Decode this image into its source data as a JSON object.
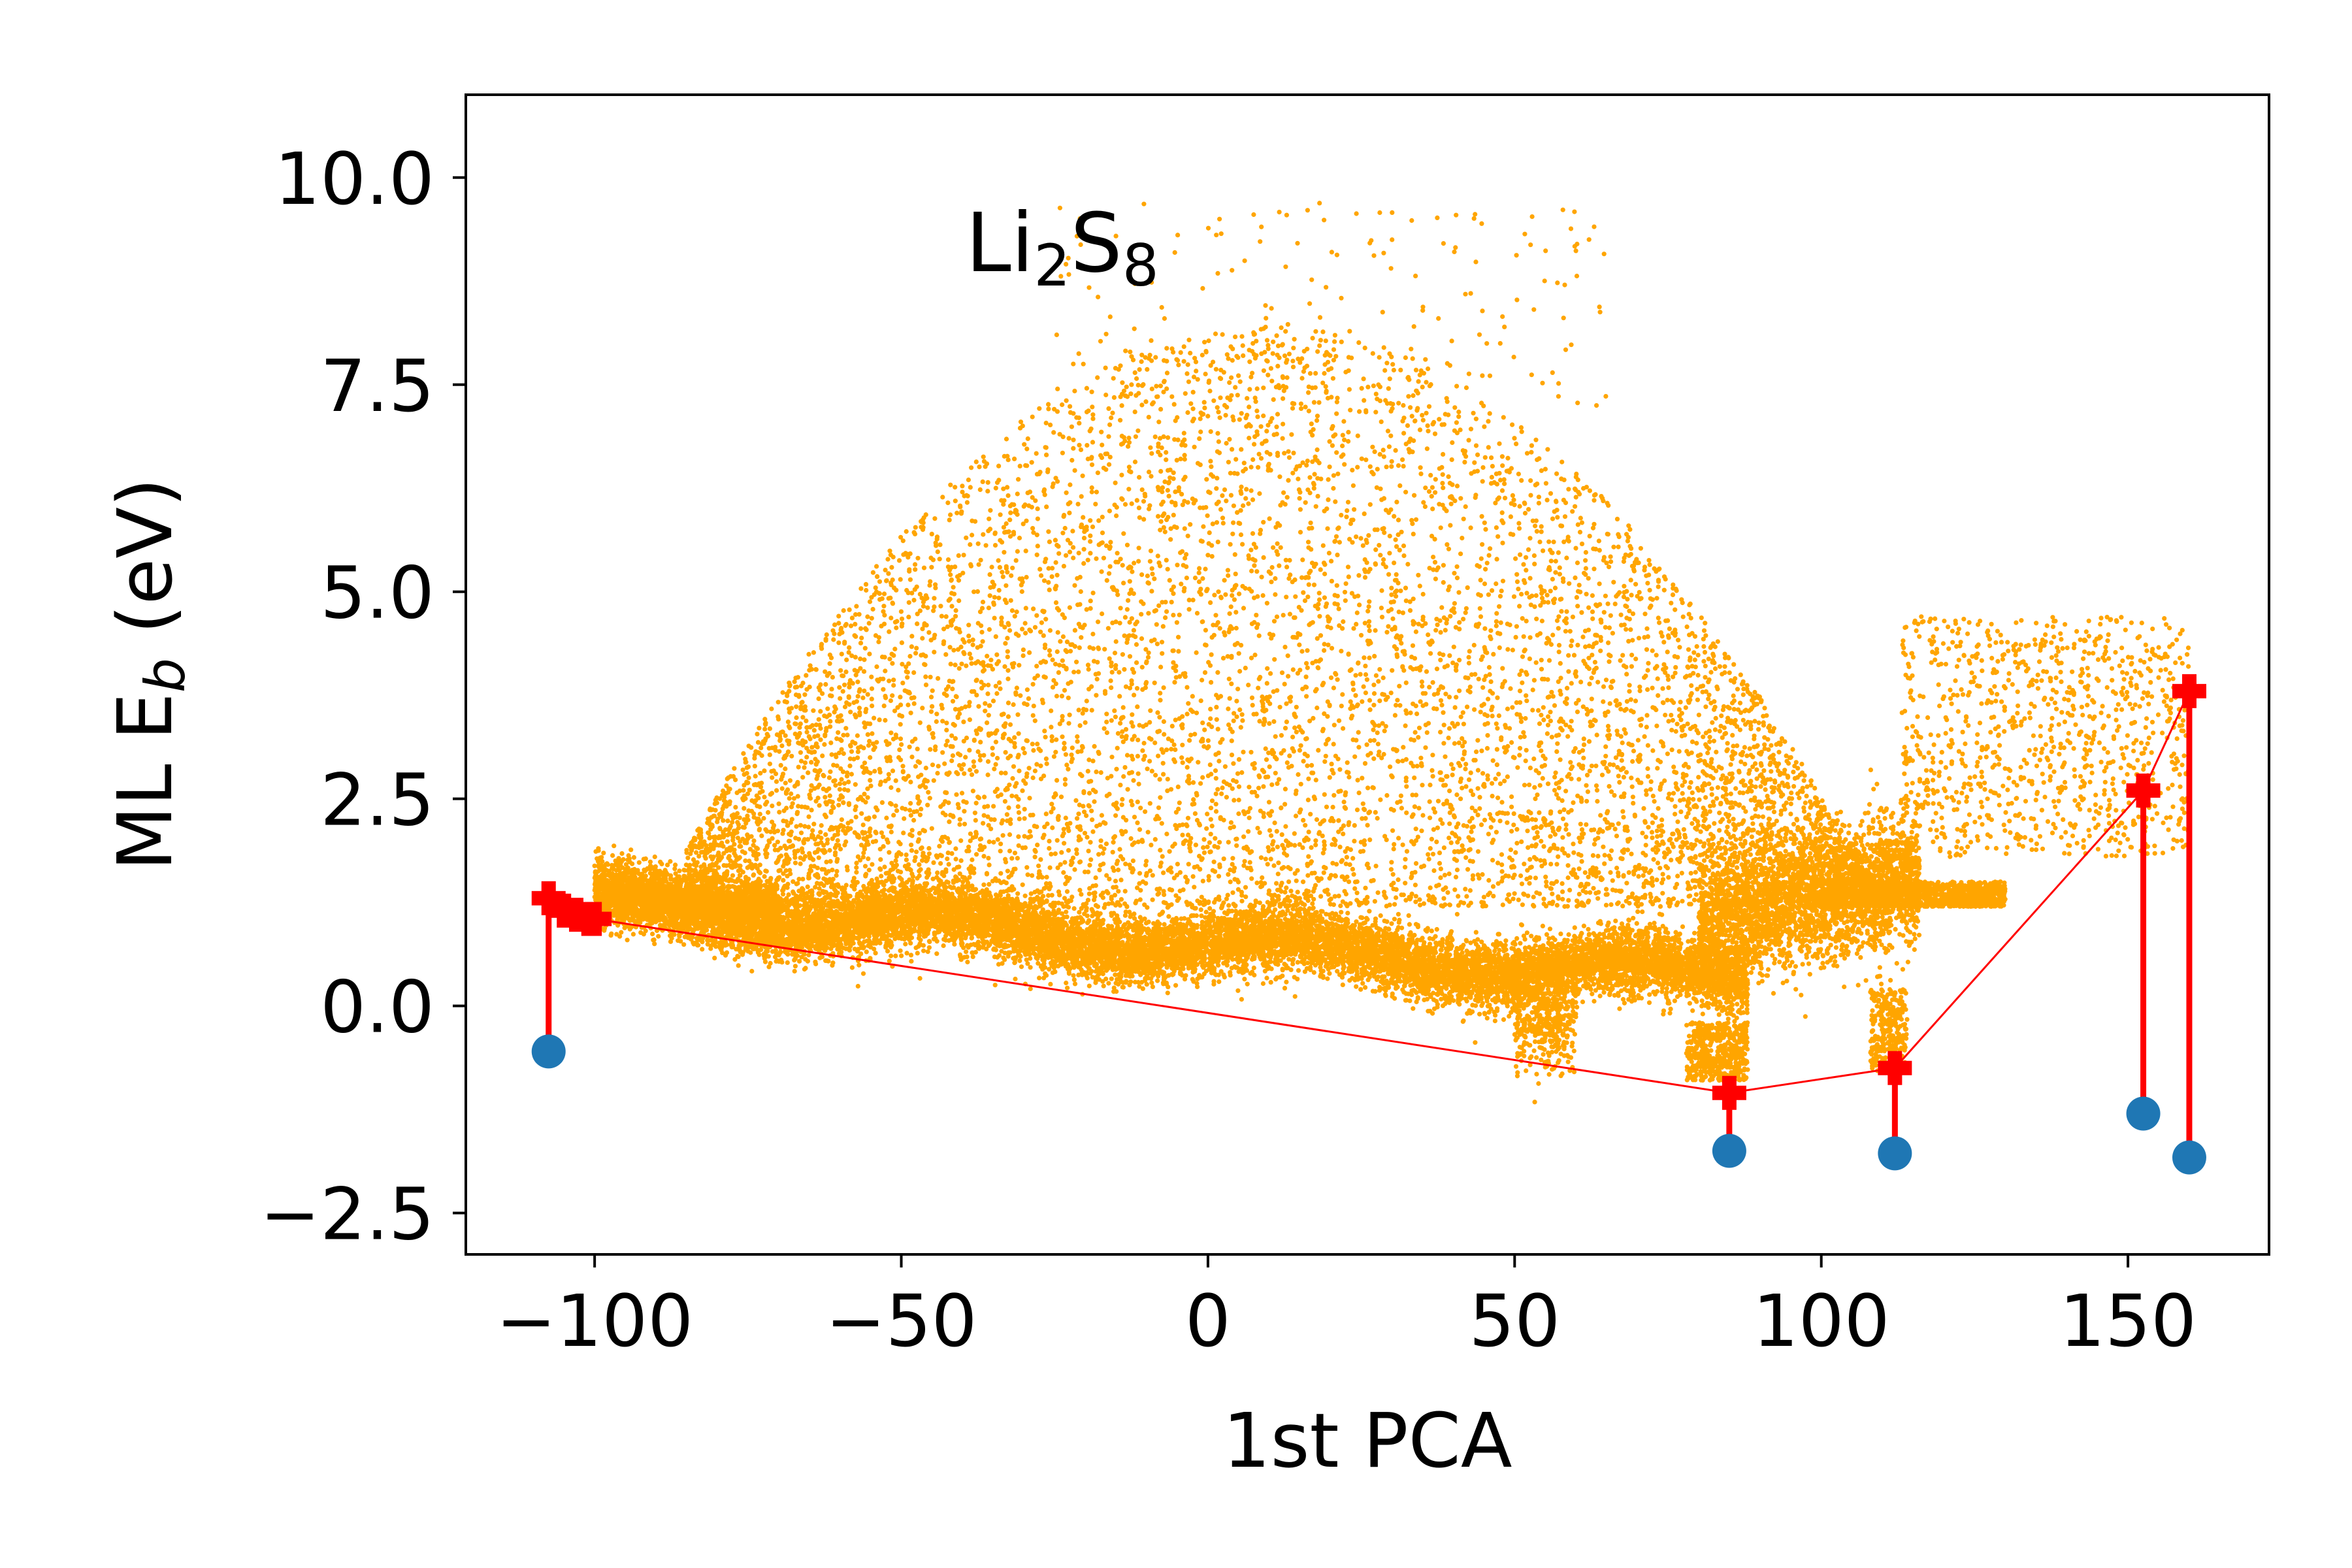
{
  "chart_data": {
    "type": "scatter",
    "title": "",
    "annotation": "Li2S8",
    "annotation_base": "Li",
    "annotation_sub1": "2",
    "annotation_mid": "S",
    "annotation_sub2": "8",
    "xlabel": "1st PCA",
    "ylabel_prefix": "ML E",
    "ylabel_sub": "b",
    "ylabel_suffix": " (eV)",
    "xlim": [
      -121,
      173
    ],
    "ylim": [
      -3.0,
      11.0
    ],
    "xticks": [
      -100,
      -50,
      0,
      50,
      100,
      150
    ],
    "xtick_labels": [
      "−100",
      "−50",
      "0",
      "50",
      "100",
      "150"
    ],
    "yticks": [
      -2.5,
      0.0,
      2.5,
      5.0,
      7.5,
      10.0
    ],
    "ytick_labels": [
      "−2.5",
      "0.0",
      "2.5",
      "5.0",
      "7.5",
      "10.0"
    ],
    "grid": false,
    "legend": "none",
    "colors": {
      "cloud": "#FFA500",
      "ml": "#FF0000",
      "dft": "#1F77B4"
    },
    "cloud_description": "dense sampled population of structures: main band near 0.5 to 1.5 eV across the PCA range, upper dome up to about 9.7 eV between -20 and 60",
    "series": [
      {
        "marker": "cross",
        "color": "#FF0000",
        "x": [
          -107.5,
          -105,
          -103,
          -101,
          -100,
          85,
          112,
          152.5,
          160
        ],
        "y": [
          1.3,
          1.15,
          1.1,
          1.05,
          1.05,
          -1.05,
          -0.75,
          2.6,
          3.8
        ]
      },
      {
        "marker": "circle",
        "color": "#1F77B4",
        "x": [
          -107.5,
          85,
          112,
          152.5,
          160
        ],
        "y": [
          -0.55,
          -1.75,
          -1.78,
          -1.3,
          -1.83
        ]
      }
    ],
    "connections": [
      {
        "x": -107.5,
        "y_from": 1.3,
        "y_to": -0.55
      },
      {
        "x": 85,
        "y_from": -1.05,
        "y_to": -1.75
      },
      {
        "x": 112,
        "y_from": -0.75,
        "y_to": -1.78
      },
      {
        "x": 152.5,
        "y_from": 2.6,
        "y_to": -1.3
      },
      {
        "x": 160,
        "y_from": 3.8,
        "y_to": -1.83
      }
    ]
  }
}
